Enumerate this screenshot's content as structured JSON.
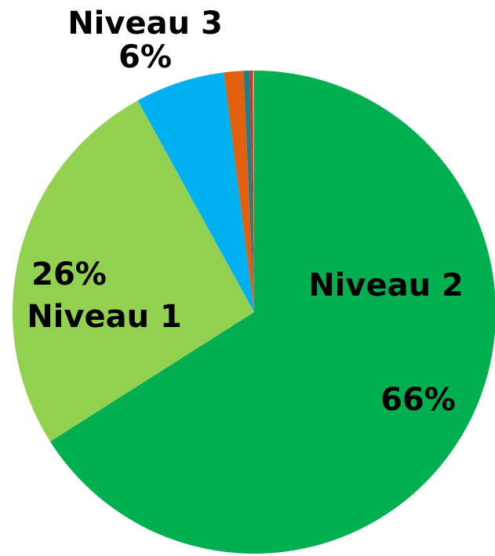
{
  "chart_data": {
    "type": "pie",
    "categories": [
      "Niveau 2",
      "Niveau 1",
      "Niveau 3",
      null,
      null,
      null,
      null
    ],
    "values": [
      66,
      26,
      6,
      1.3,
      0.4,
      0.2,
      0.1
    ],
    "value_labels": [
      "66%",
      "26%",
      "6%",
      null,
      null,
      null,
      null
    ],
    "colors": [
      "#00b050",
      "#92d050",
      "#00b0f0",
      "#e06010",
      "#1f7f86",
      "#c0392b",
      "#c8a26a"
    ]
  }
}
